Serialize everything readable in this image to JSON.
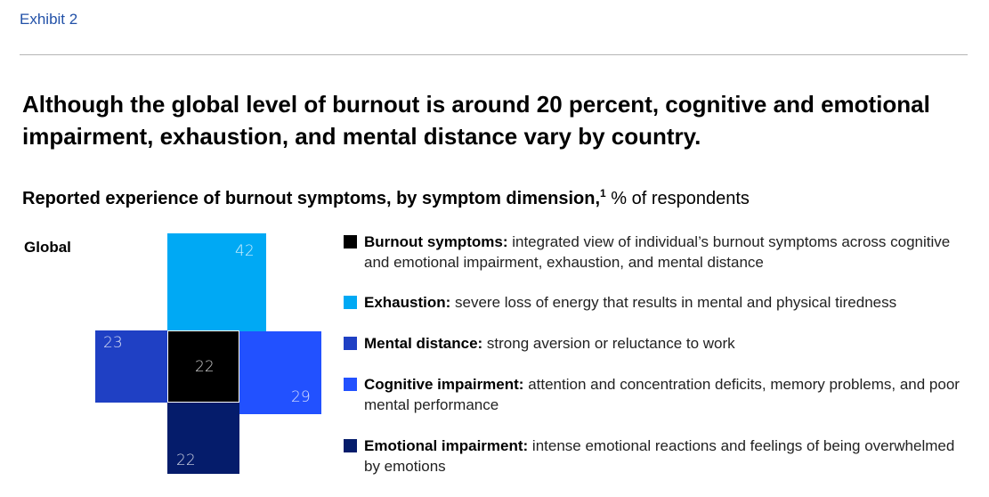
{
  "header": {
    "exhibit": "Exhibit 2",
    "title": "Although the global level of burnout is around 20 percent, cognitive and emotional impairment, exhaustion, and mental distance vary by country.",
    "subtitle_bold": "Reported experience of burnout symptoms, by symptom dimension,",
    "footnote_mark": "1",
    "subtitle_unit": " % of respondents"
  },
  "colors": {
    "burnout": "#000000",
    "exhaustion": "#00a9f4",
    "mental_distance": "#1f40c4",
    "cognitive": "#2251ff",
    "emotional": "#051c6b"
  },
  "chart_data": {
    "type": "table",
    "region": "Global",
    "unit": "% of respondents",
    "series": [
      {
        "name": "Burnout symptoms",
        "value": 22
      },
      {
        "name": "Exhaustion",
        "value": 42
      },
      {
        "name": "Mental distance",
        "value": 23
      },
      {
        "name": "Cognitive impairment",
        "value": 29
      },
      {
        "name": "Emotional impairment",
        "value": 22
      }
    ]
  },
  "legend": [
    {
      "term": "Burnout symptoms:",
      "desc": " integrated view of individual’s burnout symptoms across cognitive and emotional impairment, exhaustion, and mental distance"
    },
    {
      "term": "Exhaustion:",
      "desc": " severe loss of energy that results in mental and physical tiredness"
    },
    {
      "term": "Mental distance:",
      "desc": " strong aversion or reluctance to work"
    },
    {
      "term": "Cognitive impairment:",
      "desc": " attention and concentration deficits, memory problems, and poor mental performance"
    },
    {
      "term": "Emotional impairment:",
      "desc": " intense emotional reactions and feelings of being overwhelmed by emotions"
    }
  ]
}
